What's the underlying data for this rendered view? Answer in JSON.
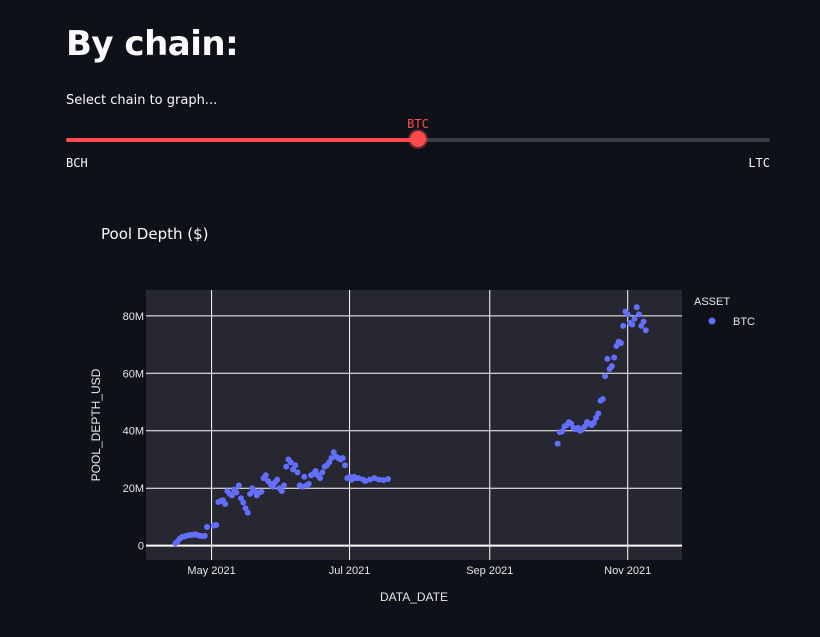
{
  "heading": "By chain:",
  "slider": {
    "label": "Select chain to graph...",
    "options": [
      "BCH",
      "BTC",
      "LTC"
    ],
    "value": "BTC",
    "min_label": "BCH",
    "max_label": "LTC",
    "accent_color": "#ff4b4b"
  },
  "chart_title": "Pool Depth ($)",
  "chart_data": {
    "type": "scatter",
    "title": "Pool Depth ($)",
    "xlabel": "DATA_DATE",
    "ylabel": "POOL_DEPTH_USD",
    "x_type": "date",
    "xlim": [
      "2021-04-02",
      "2021-11-25"
    ],
    "ylim": [
      -5000000,
      89000000
    ],
    "x_ticks": [
      {
        "date": "2021-05-01",
        "label": "May 2021"
      },
      {
        "date": "2021-07-01",
        "label": "Jul 2021"
      },
      {
        "date": "2021-09-01",
        "label": "Sep 2021"
      },
      {
        "date": "2021-11-01",
        "label": "Nov 2021"
      }
    ],
    "y_ticks": [
      {
        "value": 0,
        "label": "0"
      },
      {
        "value": 20000000,
        "label": "20M"
      },
      {
        "value": 40000000,
        "label": "40M"
      },
      {
        "value": 60000000,
        "label": "60M"
      },
      {
        "value": 80000000,
        "label": "80M"
      }
    ],
    "legend_title": "ASSET",
    "legend_position": "top-right",
    "series": [
      {
        "name": "BTC",
        "color": "#636efa",
        "points": [
          [
            "2021-04-15",
            0.8
          ],
          [
            "2021-04-16",
            1.5
          ],
          [
            "2021-04-17",
            2.5
          ],
          [
            "2021-04-18",
            3.0
          ],
          [
            "2021-04-19",
            3.2
          ],
          [
            "2021-04-20",
            3.5
          ],
          [
            "2021-04-21",
            3.6
          ],
          [
            "2021-04-22",
            3.7
          ],
          [
            "2021-04-23",
            3.8
          ],
          [
            "2021-04-24",
            3.9
          ],
          [
            "2021-04-25",
            3.6
          ],
          [
            "2021-04-26",
            3.4
          ],
          [
            "2021-04-27",
            3.3
          ],
          [
            "2021-04-28",
            3.4
          ],
          [
            "2021-04-29",
            6.5
          ],
          [
            "2021-05-02",
            7.0
          ],
          [
            "2021-05-03",
            7.2
          ],
          [
            "2021-05-04",
            15.2
          ],
          [
            "2021-05-05",
            15.5
          ],
          [
            "2021-05-06",
            15.8
          ],
          [
            "2021-05-07",
            14.5
          ],
          [
            "2021-05-08",
            19.0
          ],
          [
            "2021-05-09",
            18.0
          ],
          [
            "2021-05-10",
            17.5
          ],
          [
            "2021-05-11",
            19.5
          ],
          [
            "2021-05-12",
            18.5
          ],
          [
            "2021-05-13",
            21.0
          ],
          [
            "2021-05-14",
            16.5
          ],
          [
            "2021-05-15",
            15.0
          ],
          [
            "2021-05-16",
            13.0
          ],
          [
            "2021-05-17",
            11.5
          ],
          [
            "2021-05-18",
            18.0
          ],
          [
            "2021-05-19",
            20.0
          ],
          [
            "2021-05-20",
            19.0
          ],
          [
            "2021-05-21",
            17.5
          ],
          [
            "2021-05-22",
            18.5
          ],
          [
            "2021-05-23",
            18.8
          ],
          [
            "2021-05-24",
            23.5
          ],
          [
            "2021-05-25",
            24.5
          ],
          [
            "2021-05-26",
            22.5
          ],
          [
            "2021-05-27",
            21.5
          ],
          [
            "2021-05-28",
            20.5
          ],
          [
            "2021-05-29",
            22.0
          ],
          [
            "2021-05-30",
            23.0
          ],
          [
            "2021-05-31",
            20.0
          ],
          [
            "2021-06-01",
            19.0
          ],
          [
            "2021-06-02",
            21.0
          ],
          [
            "2021-06-03",
            27.5
          ],
          [
            "2021-06-04",
            30.0
          ],
          [
            "2021-06-05",
            29.0
          ],
          [
            "2021-06-06",
            26.5
          ],
          [
            "2021-06-07",
            28.0
          ],
          [
            "2021-06-08",
            25.5
          ],
          [
            "2021-06-09",
            21.0
          ],
          [
            "2021-06-10",
            20.5
          ],
          [
            "2021-06-11",
            24.0
          ],
          [
            "2021-06-12",
            21.0
          ],
          [
            "2021-06-13",
            21.5
          ],
          [
            "2021-06-14",
            24.5
          ],
          [
            "2021-06-15",
            25.0
          ],
          [
            "2021-06-16",
            26.0
          ],
          [
            "2021-06-17",
            24.5
          ],
          [
            "2021-06-18",
            23.5
          ],
          [
            "2021-06-19",
            25.5
          ],
          [
            "2021-06-20",
            27.5
          ],
          [
            "2021-06-21",
            28.0
          ],
          [
            "2021-06-22",
            29.0
          ],
          [
            "2021-06-23",
            30.5
          ],
          [
            "2021-06-24",
            32.5
          ],
          [
            "2021-06-25",
            31.0
          ],
          [
            "2021-06-26",
            30.5
          ],
          [
            "2021-06-27",
            30.0
          ],
          [
            "2021-06-28",
            30.5
          ],
          [
            "2021-06-29",
            28.0
          ],
          [
            "2021-06-30",
            23.5
          ],
          [
            "2021-07-01",
            24.0
          ],
          [
            "2021-07-02",
            23.0
          ],
          [
            "2021-07-03",
            24.0
          ],
          [
            "2021-07-04",
            23.5
          ],
          [
            "2021-07-05",
            23.5
          ],
          [
            "2021-07-07",
            23.0
          ],
          [
            "2021-07-08",
            22.5
          ],
          [
            "2021-07-10",
            23.0
          ],
          [
            "2021-07-12",
            23.5
          ],
          [
            "2021-07-14",
            23.0
          ],
          [
            "2021-07-16",
            22.8
          ],
          [
            "2021-07-18",
            23.2
          ],
          [
            "2021-10-01",
            35.5
          ],
          [
            "2021-10-02",
            39.5
          ],
          [
            "2021-10-03",
            39.8
          ],
          [
            "2021-10-04",
            41.5
          ],
          [
            "2021-10-05",
            42.0
          ],
          [
            "2021-10-06",
            43.0
          ],
          [
            "2021-10-07",
            42.5
          ],
          [
            "2021-10-08",
            41.0
          ],
          [
            "2021-10-09",
            40.5
          ],
          [
            "2021-10-10",
            41.0
          ],
          [
            "2021-10-11",
            40.0
          ],
          [
            "2021-10-12",
            40.5
          ],
          [
            "2021-10-13",
            41.5
          ],
          [
            "2021-10-14",
            43.0
          ],
          [
            "2021-10-15",
            42.5
          ],
          [
            "2021-10-16",
            42.0
          ],
          [
            "2021-10-17",
            42.8
          ],
          [
            "2021-10-18",
            44.5
          ],
          [
            "2021-10-19",
            46.0
          ],
          [
            "2021-10-20",
            50.5
          ],
          [
            "2021-10-21",
            51.0
          ],
          [
            "2021-10-22",
            59.0
          ],
          [
            "2021-10-23",
            65.0
          ],
          [
            "2021-10-24",
            61.5
          ],
          [
            "2021-10-25",
            62.5
          ],
          [
            "2021-10-26",
            65.5
          ],
          [
            "2021-10-27",
            69.5
          ],
          [
            "2021-10-28",
            71.0
          ],
          [
            "2021-10-29",
            70.5
          ],
          [
            "2021-10-30",
            76.5
          ],
          [
            "2021-10-31",
            81.5
          ],
          [
            "2021-11-01",
            80.5
          ],
          [
            "2021-11-02",
            77.5
          ],
          [
            "2021-11-03",
            77.0
          ],
          [
            "2021-11-04",
            79.0
          ],
          [
            "2021-11-05",
            83.0
          ],
          [
            "2021-11-06",
            80.5
          ],
          [
            "2021-11-07",
            76.5
          ],
          [
            "2021-11-08",
            78.0
          ],
          [
            "2021-11-09",
            75.0
          ]
        ]
      }
    ]
  }
}
